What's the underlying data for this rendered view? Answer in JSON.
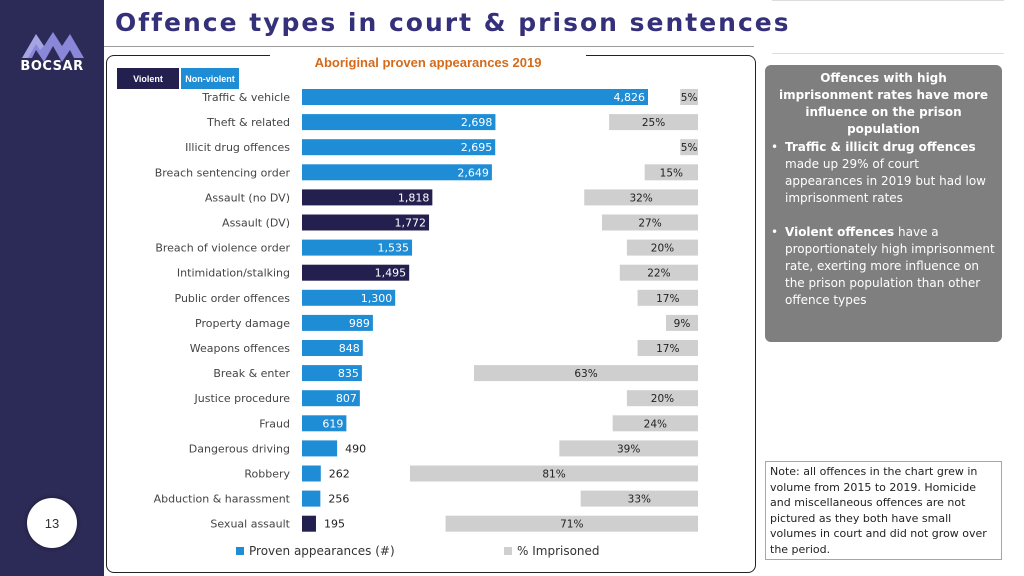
{
  "brand": {
    "name": "BOCSAR"
  },
  "page": {
    "title": "Offence types in court & prison sentences",
    "number": "13"
  },
  "nav": {
    "icons": [
      {
        "name": "chart-trend-icon",
        "bg": "#e6e6e6",
        "fg": "#ffffff"
      },
      {
        "name": "people-icon",
        "bg": "#e6e6e6",
        "fg": "#ffffff"
      },
      {
        "name": "police-officer-icon",
        "bg": "#6b6b6b",
        "fg": "#ffffff"
      },
      {
        "name": "bicycle-icon",
        "bg": "#dbeaf7",
        "fg": "#ffffff"
      },
      {
        "name": "gavel-icon",
        "bg": "#faf0c8",
        "fg": "#ffffff"
      }
    ]
  },
  "legend": {
    "violent": "Violent",
    "non_violent": "Non-violent",
    "proven": "Proven appearances (#)",
    "imprisoned": "% Imprisoned"
  },
  "colors": {
    "violent": "#23204f",
    "non_violent": "#1f8dd6",
    "imprisoned": "#cfcfcf",
    "title": "#35307a",
    "chart_title": "#d46a1a"
  },
  "info": {
    "heading": "Offences with high imprisonment rates have more influence on the prison population",
    "bullet1_bold": "Traffic & illicit drug offences",
    "bullet1_rest": " made up 29% of court appearances in 2019 but had low imprisonment rates",
    "bullet2_bold": "Violent offences",
    "bullet2_rest": " have a proportionately high imprisonment rate, exerting more influence on the prison population than other offence types"
  },
  "note": "Note: all offences in the chart grew in volume from 2015 to 2019. Homicide and miscellaneous offences are not pictured as they both have small volumes in court and did not grow over the period.",
  "chart_data": {
    "type": "bar",
    "orientation": "horizontal",
    "title": "Aboriginal proven appearances 2019",
    "categories": [
      "Traffic & vehicle",
      "Theft & related",
      "Illicit drug offences",
      "Breach sentencing order",
      "Assault (no DV)",
      "Assault (DV)",
      "Breach of violence order",
      "Intimidation/stalking",
      "Public order offences",
      "Property damage",
      "Weapons offences",
      "Break & enter",
      "Justice procedure",
      "Fraud",
      "Dangerous driving",
      "Robbery",
      "Abduction & harassment",
      "Sexual assault"
    ],
    "violent": [
      false,
      false,
      false,
      false,
      true,
      true,
      false,
      true,
      false,
      false,
      false,
      false,
      false,
      false,
      false,
      false,
      false,
      true
    ],
    "series": [
      {
        "name": "Proven appearances (#)",
        "values": [
          4826,
          2698,
          2695,
          2649,
          1818,
          1772,
          1535,
          1495,
          1300,
          989,
          848,
          835,
          807,
          619,
          490,
          262,
          256,
          195
        ],
        "labels": [
          "4,826",
          "2,698",
          "2,695",
          "2,649",
          "1,818",
          "1,772",
          "1,535",
          "1,495",
          "1,300",
          "989",
          "848",
          "835",
          "807",
          "619",
          "490",
          "262",
          "256",
          "195"
        ]
      },
      {
        "name": "% Imprisoned",
        "values": [
          5,
          25,
          5,
          15,
          32,
          27,
          20,
          22,
          17,
          9,
          17,
          63,
          20,
          24,
          39,
          81,
          33,
          71
        ],
        "labels": [
          "5%",
          "25%",
          "5%",
          "15%",
          "32%",
          "27%",
          "20%",
          "22%",
          "17%",
          "9%",
          "17%",
          "63%",
          "20%",
          "24%",
          "39%",
          "81%",
          "33%",
          "71%"
        ]
      }
    ],
    "xlim_appearances": [
      0,
      5000
    ],
    "xlim_imprisoned": [
      0,
      100
    ],
    "grid": false,
    "legend_position": "bottom"
  }
}
